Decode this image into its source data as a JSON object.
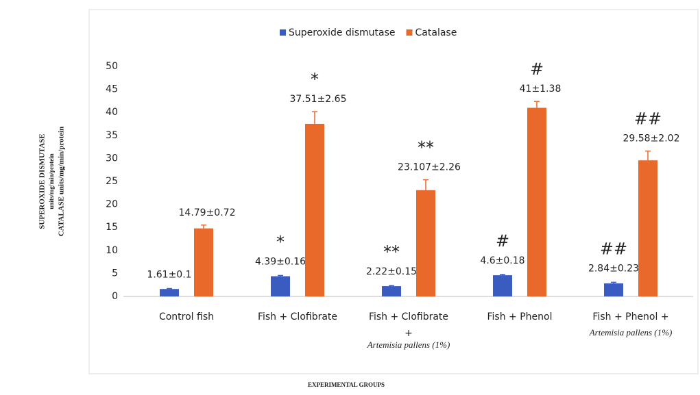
{
  "chart_data": {
    "type": "bar",
    "y_axis_label": [
      "SUPEROXIDE DISMUTASE",
      "units/mg/min/protein",
      "CATALASE   units/mg/min/protein"
    ],
    "x_axis_label": "EXPERIMENTAL GROUPS",
    "categories": [
      [
        "Control fish"
      ],
      [
        "Fish  + Clofibrate"
      ],
      [
        "Fish + Clofibrate",
        "+",
        "Artemisia pallens (1%)"
      ],
      [
        "Fish  + Phenol"
      ],
      [
        "Fish + Phenol +",
        "Artemisia pallens (1%)"
      ]
    ],
    "series": [
      {
        "name": "Superoxide dismutase",
        "color": "#3a5cc0",
        "values": [
          1.61,
          4.39,
          2.22,
          4.6,
          2.84
        ],
        "errors": [
          0.1,
          0.16,
          0.15,
          0.18,
          0.23
        ],
        "value_labels": [
          "1.61±0.1",
          "4.39±0.16",
          "2.22±0.15",
          "4.6±0.18",
          "2.84±0.23"
        ],
        "markers": [
          null,
          "*",
          "**",
          "#",
          "##"
        ]
      },
      {
        "name": "Catalase",
        "color": "#e8692a",
        "values": [
          14.79,
          37.51,
          23.107,
          41,
          29.58
        ],
        "errors": [
          0.72,
          2.65,
          2.26,
          1.38,
          2.02
        ],
        "value_labels": [
          "14.79±0.72",
          "37.51±2.65",
          "23.107±2.26",
          "41±1.38",
          "29.58±2.02"
        ],
        "markers": [
          null,
          "*",
          "**",
          "#",
          "##"
        ]
      }
    ],
    "ylim": [
      0,
      50
    ],
    "yticks": [
      0,
      5,
      10,
      15,
      20,
      25,
      30,
      35,
      40,
      45,
      50
    ],
    "legend": "top"
  }
}
